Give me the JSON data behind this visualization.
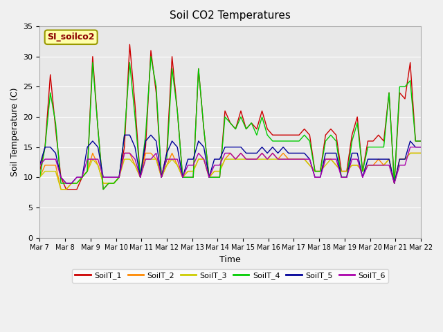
{
  "title": "Soil CO2 Temperatures",
  "xlabel": "Time",
  "ylabel": "Soil Temperature (C)",
  "ylim": [
    0,
    35
  ],
  "annotation_text": "SI_soilco2",
  "background_color": "#e8e8e8",
  "plot_bg_color": "#e8e8e8",
  "grid_color": "white",
  "legend_labels": [
    "SoilT_1",
    "SoilT_2",
    "SoilT_3",
    "SoilT_4",
    "SoilT_5",
    "SoilT_6"
  ],
  "line_colors": [
    "#cc0000",
    "#ff8800",
    "#cccc00",
    "#00cc00",
    "#000099",
    "#aa00aa"
  ],
  "x_tick_labels": [
    "Mar 7",
    "Mar 8",
    "Mar 9",
    "Mar 10",
    "Mar 11",
    "Mar 12",
    "Mar 13",
    "Mar 14",
    "Mar 15",
    "Mar 16",
    "Mar 17",
    "Mar 18",
    "Mar 19",
    "Mar 20",
    "Mar 21",
    "Mar 22"
  ],
  "soilT1": [
    11,
    15,
    27,
    18,
    10,
    8,
    8,
    8,
    10,
    11,
    30,
    18,
    8,
    9,
    9,
    10,
    15,
    32,
    22,
    10,
    15,
    31,
    24,
    10,
    14,
    30,
    21,
    10,
    10,
    10,
    28,
    18,
    10,
    10,
    10,
    21,
    19,
    18,
    21,
    18,
    19,
    18,
    21,
    18,
    17,
    17,
    17,
    17,
    17,
    17,
    18,
    17,
    11,
    11,
    17,
    18,
    17,
    11,
    11,
    17,
    20,
    11,
    16,
    16,
    17,
    16,
    24,
    9,
    24,
    23,
    29,
    16,
    16
  ],
  "soilT2": [
    10,
    12,
    12,
    12,
    8,
    8,
    9,
    9,
    10,
    11,
    14,
    12,
    9,
    9,
    9,
    10,
    14,
    14,
    12,
    10,
    14,
    14,
    13,
    10,
    12,
    14,
    12,
    10,
    11,
    11,
    13,
    13,
    10,
    11,
    11,
    13,
    14,
    13,
    14,
    13,
    13,
    13,
    14,
    13,
    14,
    13,
    14,
    13,
    13,
    13,
    13,
    12,
    11,
    11,
    13,
    13,
    12,
    11,
    11,
    12,
    12,
    11,
    12,
    12,
    13,
    12,
    13,
    9,
    13,
    13,
    14,
    14,
    14
  ],
  "soilT3": [
    10,
    11,
    11,
    11,
    8,
    8,
    9,
    9,
    10,
    11,
    13,
    12,
    9,
    9,
    9,
    10,
    13,
    13,
    12,
    10,
    13,
    13,
    13,
    10,
    12,
    13,
    12,
    10,
    11,
    11,
    13,
    13,
    10,
    11,
    11,
    13,
    13,
    13,
    13,
    13,
    13,
    13,
    13,
    13,
    13,
    13,
    13,
    13,
    13,
    13,
    13,
    12,
    11,
    11,
    12,
    13,
    12,
    11,
    11,
    12,
    12,
    11,
    12,
    12,
    12,
    12,
    13,
    9,
    13,
    13,
    14,
    14,
    14
  ],
  "soilT4": [
    10,
    15,
    24,
    19,
    9,
    9,
    9,
    9,
    10,
    11,
    29,
    18,
    8,
    9,
    9,
    10,
    17,
    29,
    20,
    10,
    17,
    30,
    25,
    10,
    13,
    28,
    21,
    10,
    10,
    10,
    28,
    18,
    10,
    10,
    10,
    20,
    19,
    18,
    20,
    18,
    19,
    17,
    20,
    17,
    16,
    16,
    16,
    16,
    16,
    16,
    17,
    16,
    11,
    11,
    16,
    17,
    16,
    10,
    10,
    16,
    19,
    11,
    15,
    15,
    15,
    15,
    24,
    9,
    25,
    25,
    26,
    16,
    16
  ],
  "soilT5": [
    12,
    15,
    15,
    14,
    10,
    9,
    9,
    10,
    10,
    15,
    16,
    15,
    10,
    10,
    10,
    10,
    17,
    17,
    15,
    10,
    16,
    17,
    16,
    10,
    14,
    16,
    15,
    10,
    13,
    13,
    16,
    15,
    10,
    13,
    13,
    15,
    15,
    15,
    15,
    14,
    14,
    14,
    15,
    14,
    15,
    14,
    15,
    14,
    14,
    14,
    14,
    13,
    10,
    10,
    14,
    14,
    14,
    10,
    10,
    14,
    14,
    10,
    13,
    13,
    13,
    13,
    13,
    9,
    13,
    13,
    16,
    15,
    15
  ],
  "soilT6": [
    12,
    13,
    13,
    13,
    10,
    9,
    9,
    10,
    10,
    13,
    13,
    13,
    10,
    10,
    10,
    10,
    14,
    14,
    13,
    10,
    13,
    13,
    14,
    10,
    13,
    13,
    13,
    10,
    12,
    12,
    14,
    13,
    10,
    12,
    12,
    14,
    14,
    13,
    14,
    13,
    13,
    13,
    14,
    13,
    14,
    13,
    13,
    13,
    13,
    13,
    13,
    13,
    10,
    10,
    13,
    13,
    13,
    10,
    10,
    13,
    13,
    10,
    12,
    12,
    12,
    12,
    12,
    9,
    12,
    12,
    15,
    15,
    15
  ]
}
